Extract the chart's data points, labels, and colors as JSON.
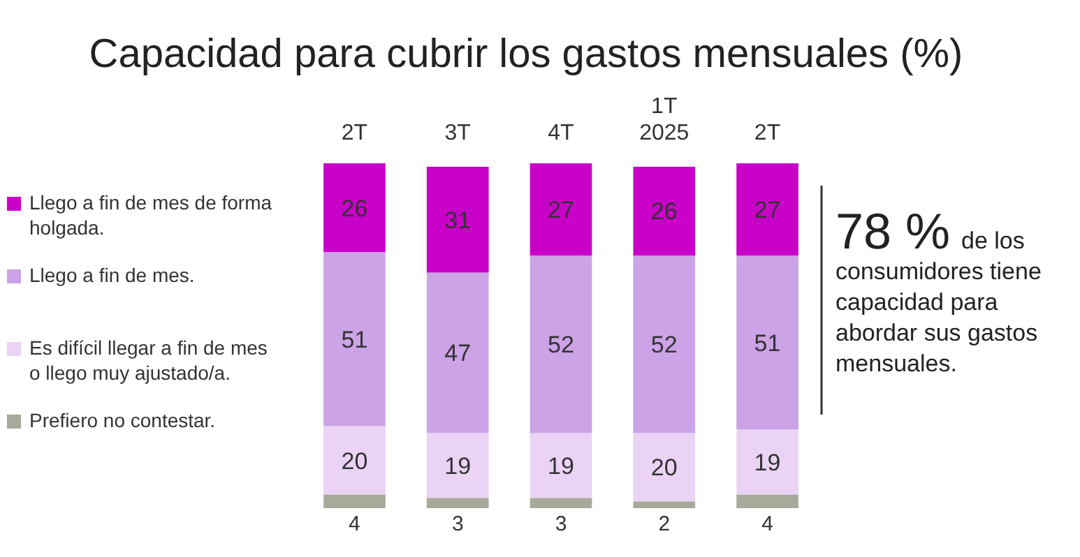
{
  "chart_data": {
    "type": "bar",
    "stacked": true,
    "title": "Capacidad para cubrir los gastos mensuales (%)",
    "categories": [
      "2T",
      "3T",
      "4T",
      "1T\n2025",
      "2T"
    ],
    "series": [
      {
        "name": "Prefiero no contestar.",
        "color": "#a9a99b",
        "values": [
          4,
          3,
          3,
          2,
          4
        ]
      },
      {
        "name": "Es difícil llegar a fin de mes o llego muy ajustado/a.",
        "color": "#ead3f5",
        "values": [
          20,
          19,
          19,
          20,
          19
        ]
      },
      {
        "name": "Llego a fin de mes.",
        "color": "#cba3e6",
        "values": [
          51,
          47,
          52,
          52,
          51
        ]
      },
      {
        "name": "Llego a fin de mes de forma holgada.",
        "color": "#c800c8",
        "values": [
          26,
          31,
          27,
          26,
          27
        ]
      }
    ],
    "data_labels": true,
    "legend": "left",
    "annotations": [
      "78 %",
      "de los consumidores tiene capacidad para abordar sus gastos mensuales."
    ]
  }
}
